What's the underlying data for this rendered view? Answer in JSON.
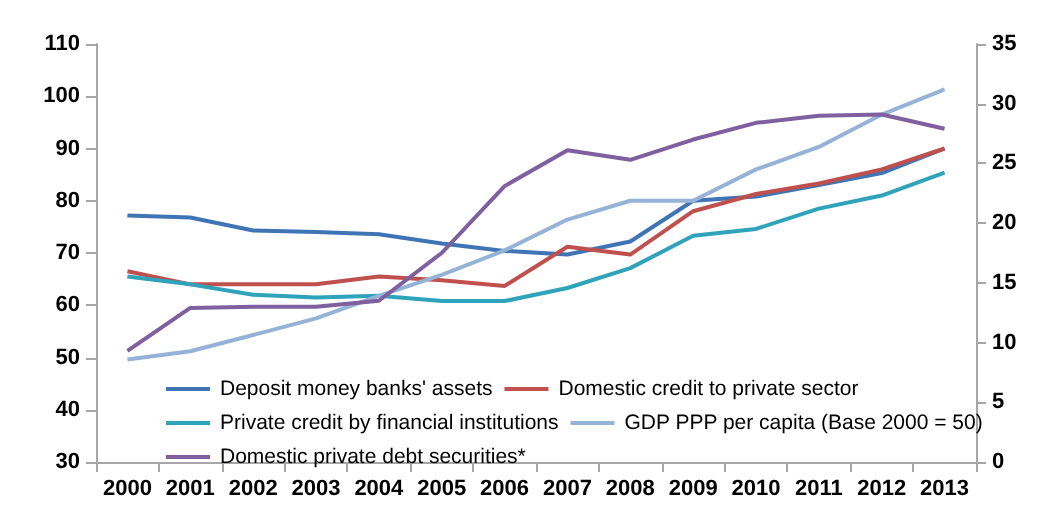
{
  "chart_data": {
    "type": "line",
    "categories": [
      "2000",
      "2001",
      "2002",
      "2003",
      "2004",
      "2005",
      "2006",
      "2007",
      "2008",
      "2009",
      "2010",
      "2011",
      "2012",
      "2013"
    ],
    "series": [
      {
        "name": "Deposit money banks' assets",
        "color": "#3f74b5",
        "values": [
          77.2,
          76.8,
          74.3,
          74,
          73.6,
          71.8,
          70.4,
          69.7,
          72.2,
          80,
          80.8,
          83,
          85.3,
          90
        ]
      },
      {
        "name": "Domestic credit to private sector",
        "color": "#c0504d",
        "values": [
          66.5,
          64,
          64,
          64,
          65.5,
          64.8,
          63.7,
          71.2,
          69.7,
          78,
          81.3,
          83.3,
          86,
          90
        ]
      },
      {
        "name": "Private credit by financial institutions",
        "color": "#2fa3b9",
        "values": [
          65.5,
          64,
          62,
          61.5,
          61.8,
          60.8,
          60.8,
          63.3,
          67.1,
          73.3,
          74.6,
          78.5,
          81,
          85.4
        ]
      },
      {
        "name": "GDP PPP per capita (Base 2000 = 50)",
        "color": "#95b3d7",
        "values": [
          49.6,
          51.2,
          54.3,
          57.5,
          61.8,
          65.8,
          70.5,
          76.4,
          80,
          80,
          86,
          90.3,
          96.5,
          101.3
        ]
      },
      {
        "name": "Domestic private debt securities*",
        "color": "#7f5fa0",
        "axis": "y2",
        "values": [
          9.3,
          12.9,
          13,
          13,
          13.5,
          17.5,
          23.1,
          26.1,
          25.3,
          27,
          28.4,
          29,
          29.1,
          27.9
        ]
      }
    ],
    "ylim": [
      30,
      110
    ],
    "yticks": [
      30,
      40,
      50,
      60,
      70,
      80,
      90,
      100,
      110
    ],
    "y2lim": [
      0,
      35
    ],
    "y2ticks": [
      0,
      5,
      10,
      15,
      20,
      25,
      30,
      35
    ],
    "legend": "bottom",
    "grid": false,
    "marker": "none",
    "line_style": "solid"
  }
}
